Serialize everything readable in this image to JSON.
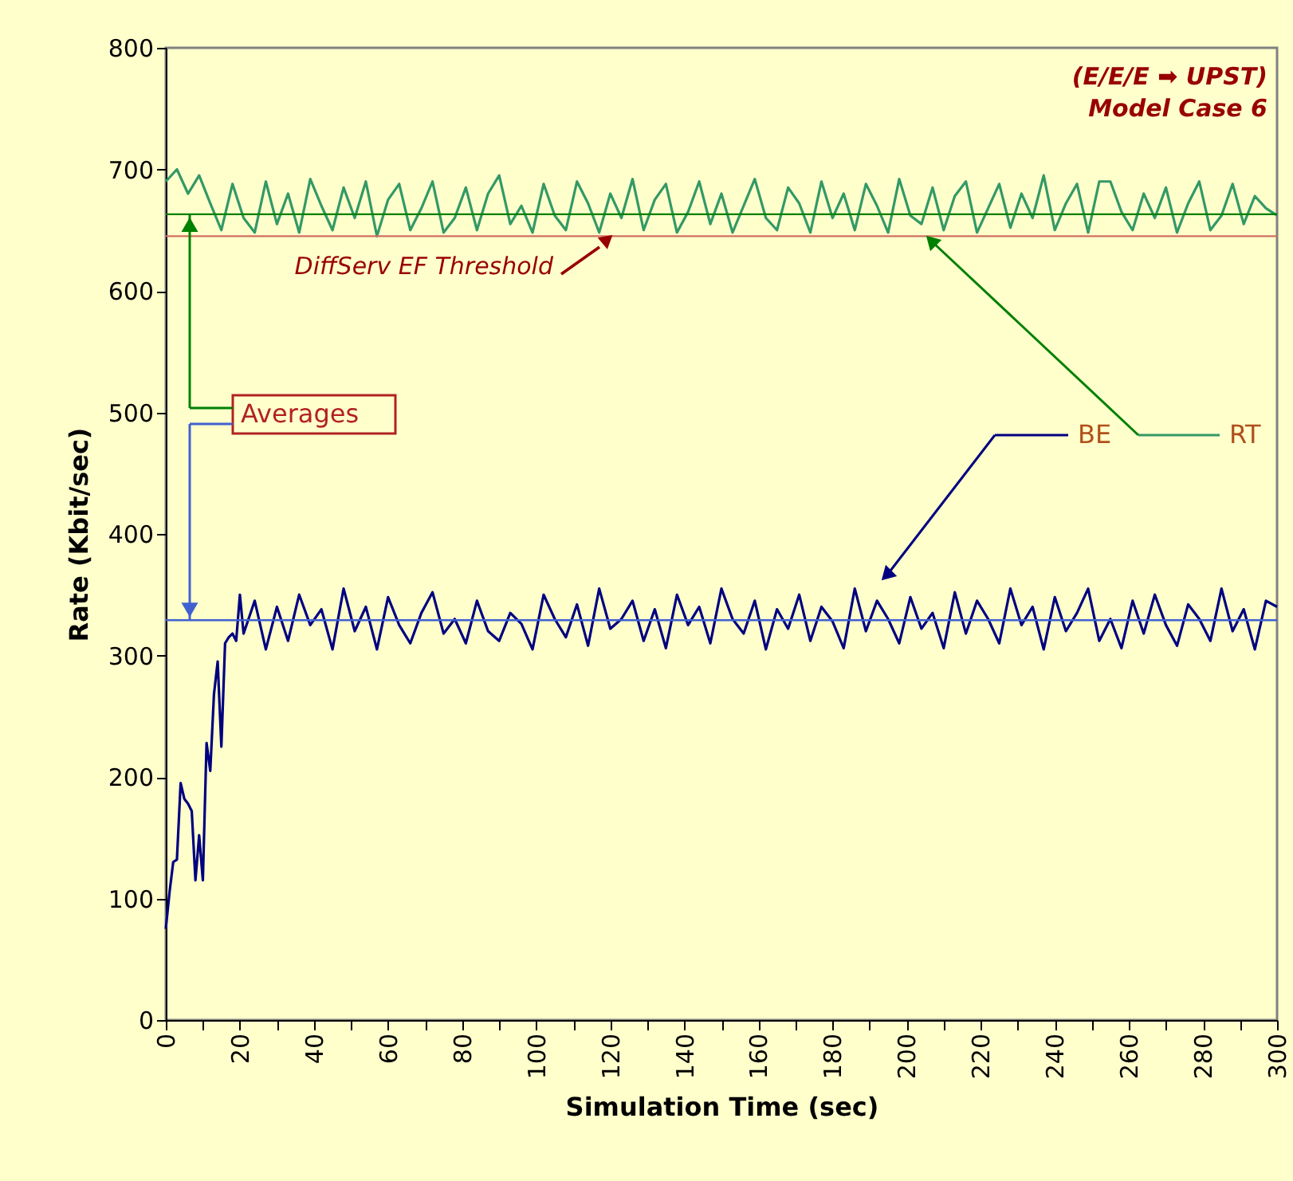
{
  "chart_data": {
    "type": "line",
    "xlabel": "Simulation Time (sec)",
    "ylabel": "Rate (Kbit/sec)",
    "xlim": [
      0,
      300
    ],
    "ylim": [
      0,
      800
    ],
    "xticks": [
      0,
      {
        "value": 10,
        "label": null
      },
      20,
      {
        "value": 30,
        "label": null
      },
      40,
      {
        "value": 50,
        "label": null
      },
      60,
      {
        "value": 70,
        "label": null
      },
      80,
      {
        "value": 90,
        "label": null
      },
      100,
      {
        "value": 110,
        "label": null
      },
      120,
      {
        "value": 130,
        "label": null
      },
      140,
      {
        "value": 150,
        "label": null
      },
      160,
      {
        "value": 170,
        "label": null
      },
      180,
      {
        "value": 190,
        "label": null
      },
      200,
      {
        "value": 210,
        "label": null
      },
      220,
      {
        "value": 230,
        "label": null
      },
      240,
      {
        "value": 250,
        "label": null
      },
      260,
      {
        "value": 270,
        "label": null
      },
      280,
      {
        "value": 290,
        "label": null
      },
      300
    ],
    "yticks": [
      0,
      100,
      200,
      300,
      400,
      500,
      600,
      700,
      800
    ],
    "grid": false,
    "legend": "right",
    "marker": "none",
    "line_style": "solid",
    "series": [
      {
        "name": "RT",
        "color": "#339966",
        "x": [
          0,
          3,
          6,
          9,
          12,
          15,
          18,
          21,
          24,
          27,
          30,
          33,
          36,
          39,
          42,
          45,
          48,
          51,
          54,
          57,
          60,
          63,
          66,
          69,
          72,
          75,
          78,
          81,
          84,
          87,
          90,
          93,
          96,
          99,
          102,
          105,
          108,
          111,
          114,
          117,
          120,
          123,
          126,
          129,
          132,
          135,
          138,
          141,
          144,
          147,
          150,
          153,
          156,
          159,
          162,
          165,
          168,
          171,
          174,
          177,
          180,
          183,
          186,
          189,
          192,
          195,
          198,
          201,
          204,
          207,
          210,
          213,
          216,
          219,
          222,
          225,
          228,
          231,
          234,
          237,
          240,
          243,
          246,
          249,
          252,
          255,
          258,
          261,
          264,
          267,
          270,
          273,
          276,
          279,
          282,
          285,
          288,
          291,
          294,
          297,
          300
        ],
        "values": [
          690,
          700,
          680,
          695,
          672,
          650,
          688,
          660,
          648,
          690,
          655,
          680,
          648,
          692,
          670,
          650,
          685,
          660,
          690,
          645,
          675,
          688,
          650,
          668,
          690,
          648,
          660,
          685,
          650,
          680,
          695,
          655,
          670,
          648,
          688,
          662,
          650,
          690,
          672,
          648,
          680,
          660,
          692,
          650,
          675,
          688,
          648,
          665,
          690,
          655,
          680,
          648,
          670,
          692,
          660,
          650,
          685,
          672,
          648,
          690,
          660,
          680,
          650,
          688,
          670,
          648,
          692,
          662,
          655,
          685,
          650,
          678,
          690,
          648,
          668,
          688,
          652,
          680,
          660,
          695,
          650,
          672,
          688,
          648,
          690,
          690,
          665,
          650,
          680,
          660,
          685,
          648,
          672,
          690,
          650,
          662,
          688,
          655,
          678,
          668,
          662
        ]
      },
      {
        "name": "BE",
        "color": "#000080",
        "x": [
          0,
          1,
          2,
          3,
          4,
          5,
          6,
          7,
          8,
          9,
          10,
          11,
          12,
          13,
          14,
          15,
          16,
          17,
          18,
          19,
          20,
          21,
          24,
          27,
          30,
          33,
          36,
          39,
          42,
          45,
          48,
          51,
          54,
          57,
          60,
          63,
          66,
          69,
          72,
          75,
          78,
          81,
          84,
          87,
          90,
          93,
          96,
          99,
          102,
          105,
          108,
          111,
          114,
          117,
          120,
          123,
          126,
          129,
          132,
          135,
          138,
          141,
          144,
          147,
          150,
          153,
          156,
          159,
          162,
          165,
          168,
          171,
          174,
          177,
          180,
          183,
          186,
          189,
          192,
          195,
          198,
          201,
          204,
          207,
          210,
          213,
          216,
          219,
          222,
          225,
          228,
          231,
          234,
          237,
          240,
          243,
          246,
          249,
          252,
          255,
          258,
          261,
          264,
          267,
          270,
          273,
          276,
          279,
          282,
          285,
          288,
          291,
          294,
          297,
          300
        ],
        "values": [
          75,
          105,
          130,
          132,
          195,
          182,
          178,
          172,
          115,
          152,
          115,
          228,
          205,
          268,
          295,
          225,
          310,
          315,
          318,
          312,
          350,
          318,
          345,
          305,
          340,
          312,
          350,
          325,
          338,
          305,
          355,
          320,
          340,
          305,
          348,
          325,
          310,
          335,
          352,
          318,
          330,
          310,
          345,
          320,
          312,
          335,
          326,
          305,
          350,
          330,
          315,
          342,
          308,
          355,
          322,
          330,
          345,
          312,
          338,
          306,
          350,
          325,
          340,
          310,
          355,
          330,
          318,
          345,
          305,
          338,
          322,
          350,
          312,
          340,
          328,
          306,
          355,
          320,
          345,
          330,
          310,
          348,
          322,
          335,
          306,
          352,
          318,
          345,
          330,
          310,
          355,
          325,
          340,
          305,
          348,
          320,
          335,
          355,
          312,
          330,
          306,
          345,
          318,
          350,
          325,
          308,
          342,
          330,
          312,
          355,
          320,
          338,
          305,
          345,
          340
        ]
      }
    ],
    "ref_lines": [
      {
        "axis": "y",
        "value": 663,
        "color": "#008000"
      },
      {
        "axis": "y",
        "value": 329,
        "color": "#4060d0"
      },
      {
        "axis": "y",
        "value": 645,
        "label": "DiffServ EF Threshold",
        "color": "#d07060"
      }
    ],
    "annotations": [
      "(E/E/E ➡ UPST)",
      "Model Case 6",
      "Averages"
    ]
  }
}
